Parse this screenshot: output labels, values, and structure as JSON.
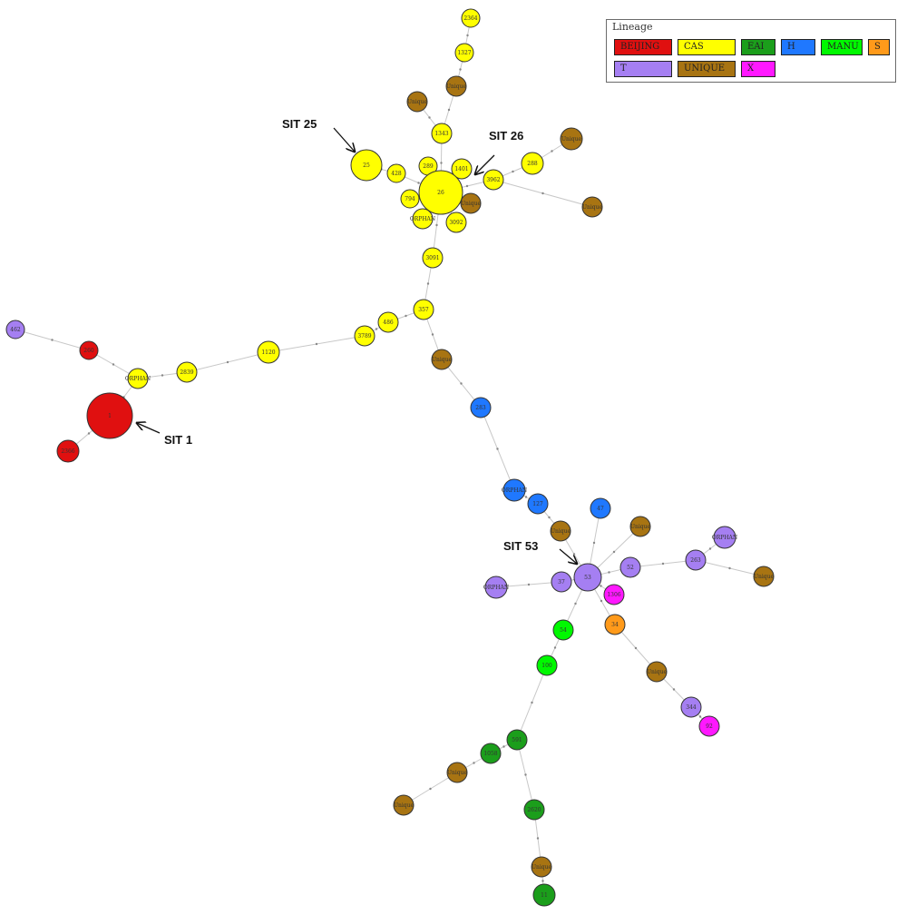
{
  "legend": {
    "title": "Lineage",
    "items": [
      {
        "label": "BEIJING",
        "color": "#e01010"
      },
      {
        "label": "CAS",
        "color": "#ffff00"
      },
      {
        "label": "EAI",
        "color": "#1b9e1b"
      },
      {
        "label": "H",
        "color": "#1f78ff"
      },
      {
        "label": "MANU",
        "color": "#00f800"
      },
      {
        "label": "S",
        "color": "#ff9a1a"
      },
      {
        "label": "T",
        "color": "#a57ff2"
      },
      {
        "label": "UNIQUE",
        "color": "#a87412"
      },
      {
        "label": "X",
        "color": "#ff18ff"
      }
    ]
  },
  "callouts": {
    "sit25": "SIT 25",
    "sit26": "SIT 26",
    "sit1": "SIT 1",
    "sit53": "SIT 53"
  },
  "nodes": [
    {
      "id": "n2364",
      "label": "2364",
      "lineage": "CAS"
    },
    {
      "id": "n1327",
      "label": "1327",
      "lineage": "CAS"
    },
    {
      "id": "u1",
      "label": "Unique",
      "lineage": "UNIQUE"
    },
    {
      "id": "u2",
      "label": "Unique",
      "lineage": "UNIQUE"
    },
    {
      "id": "n1343",
      "label": "1343",
      "lineage": "CAS"
    },
    {
      "id": "n25",
      "label": "25",
      "lineage": "CAS"
    },
    {
      "id": "n428",
      "label": "428",
      "lineage": "CAS"
    },
    {
      "id": "n289",
      "label": "289",
      "lineage": "CAS"
    },
    {
      "id": "n1401",
      "label": "1401",
      "lineage": "CAS"
    },
    {
      "id": "n26",
      "label": "26",
      "lineage": "CAS"
    },
    {
      "id": "n3962",
      "label": "3962",
      "lineage": "CAS"
    },
    {
      "id": "n288",
      "label": "288",
      "lineage": "CAS"
    },
    {
      "id": "u3",
      "label": "Unique",
      "lineage": "UNIQUE"
    },
    {
      "id": "u4",
      "label": "Unique",
      "lineage": "UNIQUE"
    },
    {
      "id": "n794",
      "label": "794",
      "lineage": "CAS"
    },
    {
      "id": "u5",
      "label": "Unique",
      "lineage": "UNIQUE"
    },
    {
      "id": "orph1",
      "label": "ORPHAN",
      "lineage": "CAS"
    },
    {
      "id": "n3092",
      "label": "3092",
      "lineage": "CAS"
    },
    {
      "id": "n3091",
      "label": "3091",
      "lineage": "CAS"
    },
    {
      "id": "n357",
      "label": "357",
      "lineage": "CAS"
    },
    {
      "id": "n486",
      "label": "486",
      "lineage": "CAS"
    },
    {
      "id": "n3789",
      "label": "3789",
      "lineage": "CAS"
    },
    {
      "id": "n1120",
      "label": "1120",
      "lineage": "CAS"
    },
    {
      "id": "n462",
      "label": "462",
      "lineage": "T"
    },
    {
      "id": "b260",
      "label": "260",
      "lineage": "BEIJING"
    },
    {
      "id": "orph2",
      "label": "ORPHAN",
      "lineage": "CAS"
    },
    {
      "id": "n2839",
      "label": "2839",
      "lineage": "CAS"
    },
    {
      "id": "n1",
      "label": "1",
      "lineage": "BEIJING"
    },
    {
      "id": "b2366",
      "label": "2366",
      "lineage": "BEIJING"
    },
    {
      "id": "u6",
      "label": "Unique",
      "lineage": "UNIQUE"
    },
    {
      "id": "h283",
      "label": "283",
      "lineage": "H"
    },
    {
      "id": "horph",
      "label": "ORPHAN",
      "lineage": "H"
    },
    {
      "id": "h127",
      "label": "127",
      "lineage": "H"
    },
    {
      "id": "h47",
      "label": "47",
      "lineage": "H"
    },
    {
      "id": "u7",
      "label": "Unique",
      "lineage": "UNIQUE"
    },
    {
      "id": "u8",
      "label": "Unique",
      "lineage": "UNIQUE"
    },
    {
      "id": "torph1",
      "label": "ORPHAN",
      "lineage": "T"
    },
    {
      "id": "t263",
      "label": "263",
      "lineage": "T"
    },
    {
      "id": "u9",
      "label": "Unique",
      "lineage": "UNIQUE"
    },
    {
      "id": "t52",
      "label": "52",
      "lineage": "T"
    },
    {
      "id": "t53",
      "label": "53",
      "lineage": "T"
    },
    {
      "id": "t37",
      "label": "37",
      "lineage": "T"
    },
    {
      "id": "torph2",
      "label": "ORPHAN",
      "lineage": "T"
    },
    {
      "id": "x1306",
      "label": "1306",
      "lineage": "X"
    },
    {
      "id": "s34",
      "label": "34",
      "lineage": "S"
    },
    {
      "id": "m54",
      "label": "54",
      "lineage": "MANU"
    },
    {
      "id": "m100",
      "label": "100",
      "lineage": "MANU"
    },
    {
      "id": "u10",
      "label": "Unique",
      "lineage": "UNIQUE"
    },
    {
      "id": "t344",
      "label": "344",
      "lineage": "T"
    },
    {
      "id": "x92",
      "label": "92",
      "lineage": "X"
    },
    {
      "id": "e591",
      "label": "591",
      "lineage": "EAI"
    },
    {
      "id": "e1058",
      "label": "1058",
      "lineage": "EAI"
    },
    {
      "id": "u11",
      "label": "Unique",
      "lineage": "UNIQUE"
    },
    {
      "id": "u12",
      "label": "Unique",
      "lineage": "UNIQUE"
    },
    {
      "id": "e2620",
      "label": "2620",
      "lineage": "EAI"
    },
    {
      "id": "u13",
      "label": "Unique",
      "lineage": "UNIQUE"
    },
    {
      "id": "e11",
      "label": "11",
      "lineage": "EAI"
    }
  ],
  "edges": [
    [
      "n2364",
      "n1327"
    ],
    [
      "n1327",
      "u1"
    ],
    [
      "u1",
      "n1343"
    ],
    [
      "n1343",
      "n26"
    ],
    [
      "u2",
      "n1343"
    ],
    [
      "n25",
      "n428"
    ],
    [
      "n428",
      "n26"
    ],
    [
      "n289",
      "n26"
    ],
    [
      "n1401",
      "n26"
    ],
    [
      "n3962",
      "n26"
    ],
    [
      "n288",
      "n3962"
    ],
    [
      "u3",
      "n288"
    ],
    [
      "n3962",
      "u4"
    ],
    [
      "n794",
      "n26"
    ],
    [
      "u5",
      "n26"
    ],
    [
      "orph1",
      "n26"
    ],
    [
      "n3092",
      "n26"
    ],
    [
      "n26",
      "n3091"
    ],
    [
      "n3091",
      "n357"
    ],
    [
      "n357",
      "n486"
    ],
    [
      "n486",
      "n3789"
    ],
    [
      "n3789",
      "n1120"
    ],
    [
      "n1120",
      "n2839"
    ],
    [
      "n2839",
      "orph2"
    ],
    [
      "orph2",
      "b260"
    ],
    [
      "b260",
      "n462"
    ],
    [
      "orph2",
      "n1"
    ],
    [
      "n1",
      "b2366"
    ],
    [
      "n357",
      "u6"
    ],
    [
      "u6",
      "h283"
    ],
    [
      "h283",
      "horph"
    ],
    [
      "horph",
      "h127"
    ],
    [
      "h127",
      "u7"
    ],
    [
      "u7",
      "t53"
    ],
    [
      "h47",
      "t53"
    ],
    [
      "u8",
      "t53"
    ],
    [
      "t52",
      "t53"
    ],
    [
      "t52",
      "t263"
    ],
    [
      "t263",
      "torph1"
    ],
    [
      "t263",
      "u9"
    ],
    [
      "t37",
      "t53"
    ],
    [
      "torph2",
      "t37"
    ],
    [
      "x1306",
      "t53"
    ],
    [
      "s34",
      "t53"
    ],
    [
      "m54",
      "t53"
    ],
    [
      "m54",
      "m100"
    ],
    [
      "m100",
      "e591"
    ],
    [
      "e591",
      "e1058"
    ],
    [
      "e1058",
      "u11"
    ],
    [
      "u11",
      "u12"
    ],
    [
      "e591",
      "e2620"
    ],
    [
      "e2620",
      "u13"
    ],
    [
      "u13",
      "e11"
    ],
    [
      "s34",
      "u10"
    ],
    [
      "u10",
      "t344"
    ],
    [
      "t344",
      "x92"
    ]
  ]
}
